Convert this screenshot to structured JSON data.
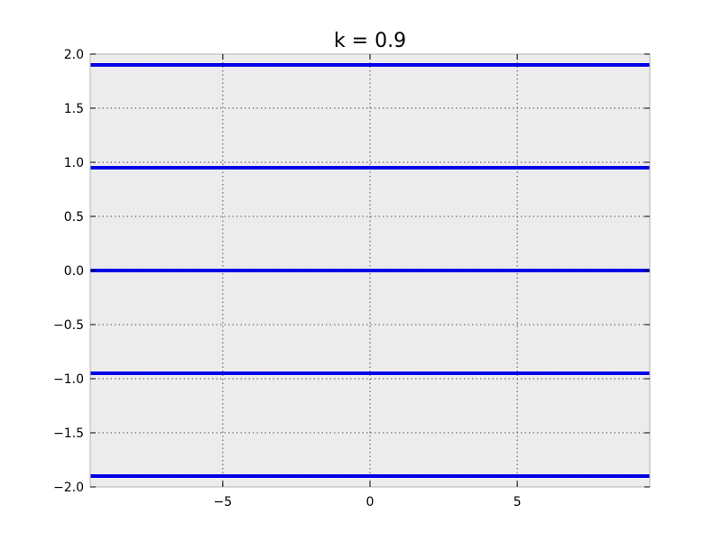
{
  "chart_data": {
    "type": "line",
    "title": "k = 0.9",
    "xlabel": "",
    "ylabel": "",
    "xlim": [
      -9.5,
      9.5
    ],
    "ylim": [
      -2.0,
      2.0
    ],
    "grid": true,
    "x_ticks": [
      -5,
      0,
      5
    ],
    "x_tick_labels": [
      "−5",
      "0",
      "5"
    ],
    "y_ticks": [
      -2.0,
      -1.5,
      -1.0,
      -0.5,
      0.0,
      0.5,
      1.0,
      1.5,
      2.0
    ],
    "y_tick_labels": [
      "−2.0",
      "−1.5",
      "−1.0",
      "−0.5",
      "0.0",
      "0.5",
      "1.0",
      "1.5",
      "2.0"
    ],
    "series": [
      {
        "x": [
          -9.5,
          9.5
        ],
        "y": [
          1.9,
          1.9
        ]
      },
      {
        "x": [
          -9.5,
          9.5
        ],
        "y": [
          0.95,
          0.95
        ]
      },
      {
        "x": [
          -9.5,
          9.5
        ],
        "y": [
          0.0,
          0.0
        ]
      },
      {
        "x": [
          -9.5,
          9.5
        ],
        "y": [
          -0.95,
          -0.95
        ]
      },
      {
        "x": [
          -9.5,
          9.5
        ],
        "y": [
          -1.9,
          -1.9
        ]
      }
    ],
    "line_color": "#0000ff",
    "plot_background": "#ececec"
  }
}
